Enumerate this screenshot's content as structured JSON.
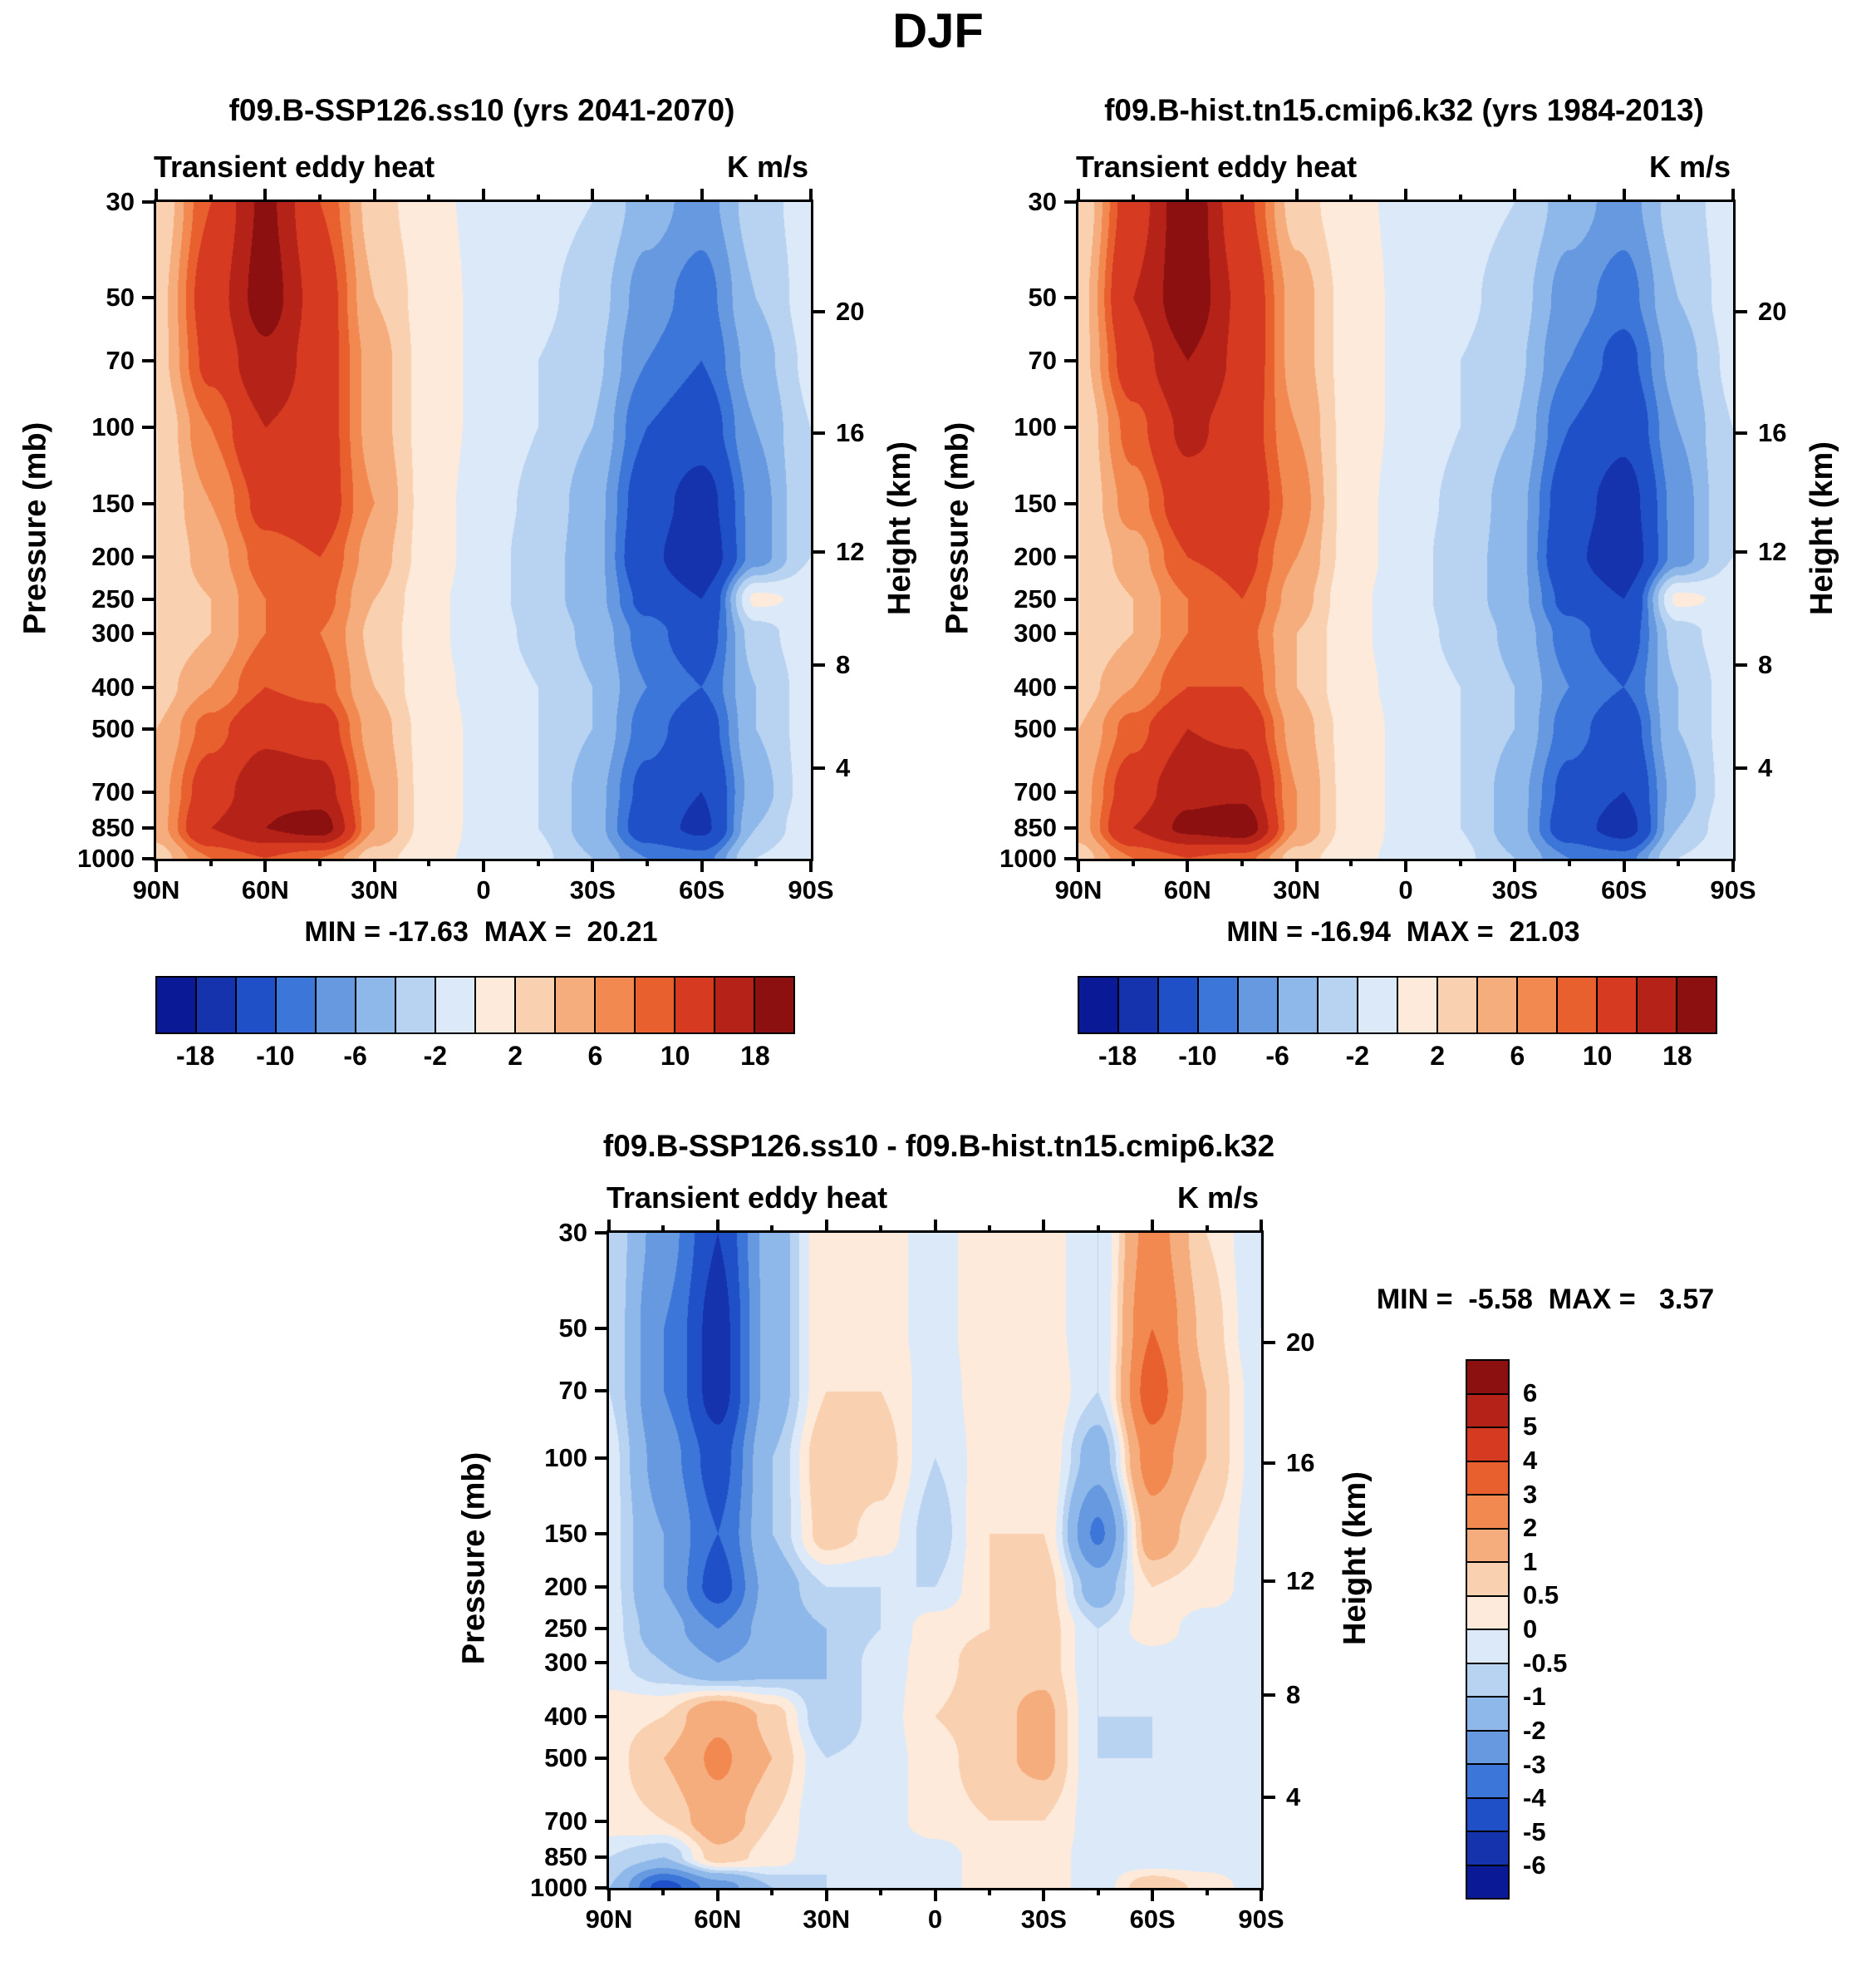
{
  "title": "DJF",
  "axes": {
    "pressure_label": "Pressure (mb)",
    "height_label": "Height (km)",
    "pressure_ticks": [
      30,
      50,
      70,
      100,
      150,
      200,
      250,
      300,
      400,
      500,
      700,
      850,
      1000
    ],
    "height_ticks": [
      {
        "label": "20",
        "pressure": 54
      },
      {
        "label": "16",
        "pressure": 103
      },
      {
        "label": "12",
        "pressure": 194
      },
      {
        "label": "8",
        "pressure": 356
      },
      {
        "label": "4",
        "pressure": 616
      }
    ],
    "lat_tick_labels": [
      "90N",
      "60N",
      "30N",
      "0",
      "30S",
      "60S",
      "90S"
    ]
  },
  "colorbar_main": {
    "levels": [
      -18,
      -14,
      -10,
      -8,
      -6,
      -4,
      -2,
      0,
      2,
      4,
      6,
      8,
      10,
      14,
      18
    ],
    "colors": [
      "#0a1a96",
      "#1433ad",
      "#2050c8",
      "#3b76d8",
      "#6699e0",
      "#8fb8ea",
      "#b8d3f1",
      "#dce9f8",
      "#fdeadb",
      "#fad1b0",
      "#f6ad7e",
      "#f18951",
      "#e9602f",
      "#d63a20",
      "#b52318",
      "#8c1010"
    ],
    "tick_labels": [
      "-18",
      "-10",
      "-6",
      "-2",
      "2",
      "6",
      "10",
      "18"
    ],
    "tick_edge_indices": [
      1,
      3,
      5,
      7,
      9,
      11,
      13,
      15
    ]
  },
  "colorbar_diff": {
    "levels": [
      -6,
      -5,
      -4,
      -3,
      -2,
      -1,
      -0.5,
      0,
      0.5,
      1,
      2,
      3,
      4,
      5,
      6
    ],
    "colors": [
      "#0a1a96",
      "#1433ad",
      "#2050c8",
      "#3b76d8",
      "#6699e0",
      "#8fb8ea",
      "#b8d3f1",
      "#dce9f8",
      "#fdeadb",
      "#fad1b0",
      "#f6ad7e",
      "#f18951",
      "#e9602f",
      "#d63a20",
      "#b52318",
      "#8c1010"
    ],
    "tick_labels": [
      "6",
      "5",
      "4",
      "3",
      "2",
      "1",
      "0.5",
      "0",
      "-0.5",
      "-1",
      "-2",
      "-3",
      "-4",
      "-5",
      "-6"
    ]
  },
  "chart_data": [
    {
      "type": "heatmap",
      "panel": "panel-a",
      "title": "f09.B-SSP126.ss10 (yrs 2041-2070)",
      "field_label": "Transient eddy heat",
      "units_label": "K m/s",
      "minmax_text": "MIN = -17.63  MAX =  20.21",
      "min": -17.63,
      "max": 20.21,
      "colorbar": "colorbar_main",
      "x_latitude_deg": [
        90,
        75,
        60,
        45,
        30,
        15,
        0,
        -15,
        -30,
        -45,
        -60,
        -75,
        -90
      ],
      "y_pressure_mb": [
        30,
        50,
        70,
        100,
        150,
        200,
        250,
        300,
        400,
        500,
        700,
        850,
        1000
      ],
      "values": [
        [
          2,
          10,
          19,
          10,
          3,
          0.5,
          -0.5,
          -1,
          -2,
          -5,
          -7,
          -3,
          -1
        ],
        [
          3,
          12,
          20,
          12,
          4,
          1,
          -0.5,
          -1.5,
          -3,
          -7,
          -9,
          -4,
          -1
        ],
        [
          3,
          11,
          17,
          12,
          5,
          1,
          -0.5,
          -2,
          -3.5,
          -8,
          -10,
          -5,
          -1.5
        ],
        [
          2,
          8,
          14,
          12,
          5,
          1,
          -0.5,
          -2,
          -4,
          -10,
          -12,
          -6,
          -2
        ],
        [
          2,
          6,
          11,
          12,
          6,
          1,
          -1,
          -2.5,
          -5,
          -12,
          -16,
          -7,
          -2
        ],
        [
          2,
          5,
          9,
          10,
          5,
          1,
          -1,
          -3,
          -5,
          -13,
          -17.5,
          -7,
          -2
        ],
        [
          2,
          4,
          8,
          9,
          4,
          0.5,
          -1,
          -3,
          -5,
          -11,
          -14,
          0.5,
          -0.5
        ],
        [
          2,
          4,
          8,
          8,
          3.5,
          0.5,
          -1,
          -2.5,
          -4.5,
          -9,
          -12,
          -3,
          -0.5
        ],
        [
          3,
          6,
          10,
          9,
          4,
          0.5,
          -0.5,
          -2,
          -4,
          -8,
          -10,
          -4,
          -1
        ],
        [
          4,
          9,
          13,
          12,
          5,
          1,
          -0.5,
          -2,
          -4,
          -9,
          -12,
          -4,
          -1
        ],
        [
          5,
          12,
          17,
          16,
          6,
          1,
          -0.5,
          -2,
          -5,
          -11,
          -14,
          -5,
          -1
        ],
        [
          5,
          14,
          18,
          20,
          6,
          1,
          -0.5,
          -2,
          -5,
          -12,
          -15,
          -4,
          -0.5
        ],
        [
          3,
          8,
          10,
          8,
          3,
          0.5,
          -0.5,
          -1.5,
          -4,
          -8,
          -9,
          -2,
          0
        ]
      ]
    },
    {
      "type": "heatmap",
      "panel": "panel-b",
      "title": "f09.B-hist.tn15.cmip6.k32 (yrs 1984-2013)",
      "field_label": "Transient eddy heat",
      "units_label": "K m/s",
      "minmax_text": "MIN = -16.94  MAX =  21.03",
      "min": -16.94,
      "max": 21.03,
      "colorbar": "colorbar_main",
      "x_latitude_deg": [
        90,
        75,
        60,
        45,
        30,
        15,
        0,
        -15,
        -30,
        -45,
        -60,
        -75,
        -90
      ],
      "y_pressure_mb": [
        30,
        50,
        70,
        100,
        150,
        200,
        250,
        300,
        400,
        500,
        700,
        850,
        1000
      ],
      "values": [
        [
          2,
          12,
          21,
          11,
          3,
          0.5,
          -0.5,
          -1,
          -2,
          -5,
          -7,
          -3,
          -1
        ],
        [
          3,
          14,
          21,
          13,
          5,
          1,
          -0.5,
          -1.5,
          -3,
          -7,
          -9,
          -4,
          -1
        ],
        [
          3,
          12,
          18,
          13,
          5,
          1,
          -0.5,
          -2,
          -3.5,
          -8,
          -11,
          -5,
          -1.5
        ],
        [
          2,
          9,
          15,
          12,
          6,
          1,
          -0.5,
          -2,
          -4,
          -10,
          -13,
          -6,
          -2
        ],
        [
          2,
          7,
          12,
          13,
          7,
          1,
          -1,
          -2.5,
          -5,
          -12,
          -16,
          -7,
          -2
        ],
        [
          2,
          5,
          10,
          11,
          6,
          1,
          -1,
          -3,
          -5,
          -13,
          -17,
          -7,
          -2
        ],
        [
          2,
          4,
          8,
          10,
          5,
          0.5,
          -1,
          -3,
          -5,
          -11,
          -14,
          0.5,
          -0.5
        ],
        [
          2,
          4,
          8,
          9,
          4,
          0.5,
          -1,
          -2.5,
          -4.5,
          -9,
          -12,
          -3,
          -0.5
        ],
        [
          3,
          6,
          10,
          10,
          4,
          0.5,
          -0.5,
          -2,
          -4,
          -8,
          -10,
          -4,
          -1
        ],
        [
          4,
          9,
          14,
          13,
          5,
          1,
          -0.5,
          -2,
          -4,
          -9,
          -12,
          -4,
          -1
        ],
        [
          5,
          12,
          17,
          17,
          6,
          1,
          -0.5,
          -2,
          -5,
          -11,
          -14,
          -5,
          -1
        ],
        [
          5,
          14,
          19,
          21,
          6,
          1,
          -0.5,
          -2,
          -5,
          -12,
          -16,
          -4,
          -0.5
        ],
        [
          3,
          8,
          10,
          9,
          3,
          0.5,
          -0.5,
          -1.5,
          -4,
          -8,
          -9,
          -2,
          0
        ]
      ]
    },
    {
      "type": "heatmap",
      "panel": "panel-c",
      "title": "f09.B-SSP126.ss10 - f09.B-hist.tn15.cmip6.k32",
      "field_label": "Transient eddy heat",
      "units_label": "K m/s",
      "minmax_text": "MIN =  -5.58  MAX =   3.57",
      "min": -5.58,
      "max": 3.57,
      "colorbar": "colorbar_diff",
      "x_latitude_deg": [
        90,
        75,
        60,
        45,
        30,
        15,
        0,
        -15,
        -30,
        -45,
        -60,
        -75,
        -90
      ],
      "y_pressure_mb": [
        30,
        50,
        70,
        100,
        150,
        200,
        250,
        300,
        400,
        500,
        700,
        850,
        1000
      ],
      "values": [
        [
          -0.5,
          -2.5,
          -5,
          -1.5,
          0.5,
          0.3,
          -0.3,
          0.5,
          0.3,
          -0.5,
          2.5,
          0.5,
          -0.5
        ],
        [
          -0.5,
          -3,
          -5.5,
          -1.5,
          0.5,
          0.3,
          -0.3,
          0.5,
          0.3,
          -0.5,
          3,
          0.8,
          -0.5
        ],
        [
          -0.5,
          -3,
          -5.5,
          -1.5,
          0.5,
          0.5,
          -0.3,
          0.3,
          0.5,
          -0.5,
          3.5,
          1,
          -0.3
        ],
        [
          -0.3,
          -2.5,
          -4.5,
          -1,
          1,
          0.8,
          -0.5,
          0.3,
          0.5,
          -1.5,
          2.5,
          1,
          -0.3
        ],
        [
          -0.3,
          -2,
          -4,
          -1,
          0.8,
          0.3,
          -0.8,
          0.5,
          0.5,
          -3.2,
          1.5,
          0.5,
          -0.3
        ],
        [
          -0.3,
          -2,
          -4.5,
          -1.5,
          -0.5,
          -0.5,
          -0.5,
          0.5,
          0.8,
          -1.5,
          0.5,
          0.3,
          -0.3
        ],
        [
          -0.3,
          -1.5,
          -3,
          -1.5,
          -1,
          -0.5,
          0.3,
          0.5,
          0.8,
          -0.5,
          0.3,
          -0.3,
          -0.3
        ],
        [
          -0.3,
          -1,
          -2,
          -1.5,
          -1,
          -0.3,
          0.3,
          0.8,
          0.8,
          -0.5,
          -0.3,
          -0.3,
          -0.3
        ],
        [
          0.3,
          0.5,
          1.8,
          0.8,
          -1,
          -0.3,
          0.5,
          0.8,
          1.2,
          -0.5,
          -0.5,
          -0.3,
          -0.3
        ],
        [
          0.3,
          1,
          2.2,
          1,
          -0.5,
          -0.3,
          0.3,
          0.8,
          1.2,
          -0.5,
          -0.5,
          -0.3,
          -0.3
        ],
        [
          0.3,
          0.5,
          1.5,
          0.5,
          -0.5,
          -0.3,
          0.3,
          0.5,
          0.5,
          -0.3,
          -0.5,
          -0.3,
          -0.3
        ],
        [
          -0.5,
          -1,
          0.8,
          0.3,
          -0.5,
          -0.5,
          -0.3,
          0.3,
          0.3,
          -0.3,
          -0.5,
          -0.3,
          -0.3
        ],
        [
          -1,
          -4.5,
          -2.5,
          -1,
          -0.5,
          -0.3,
          -0.3,
          0.3,
          0.3,
          -0.3,
          1,
          0.3,
          -0.3
        ]
      ]
    }
  ]
}
